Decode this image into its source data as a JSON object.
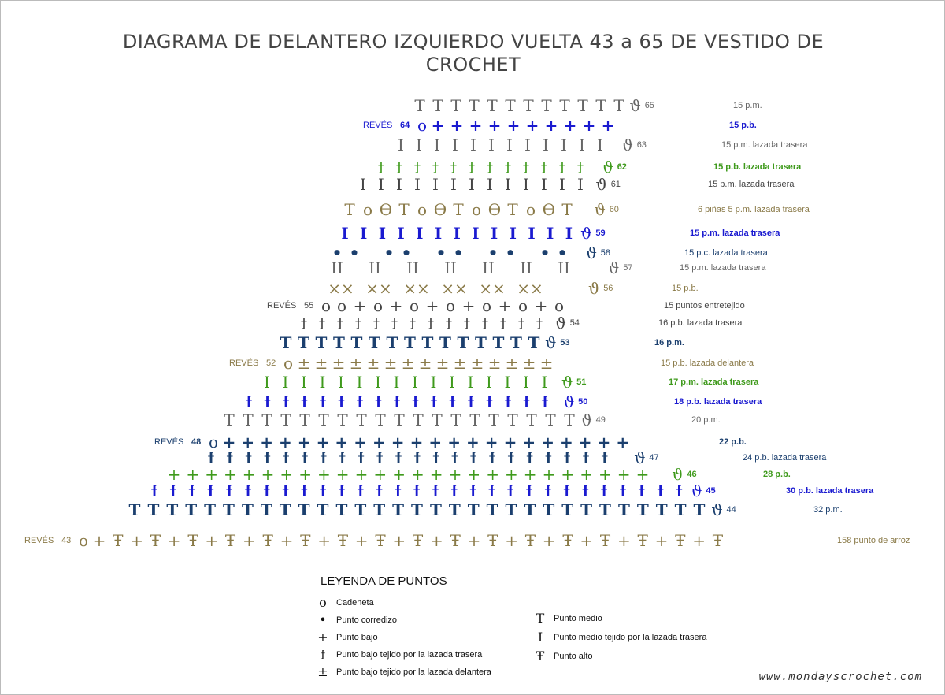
{
  "title": "DIAGRAMA DE DELANTERO IZQUIERDO VUELTA 43 a 65 DE VESTIDO DE CROCHET",
  "reves_label": "REVÉS",
  "colors": {
    "gray": "#666666",
    "darkgray": "#444444",
    "blue": "#1a1ad0",
    "green": "#3f9a1c",
    "olive": "#8a7a48",
    "navy": "#1b3f6e"
  },
  "rows": [
    {
      "number": "65",
      "stitch": "punto-medio",
      "color": "gray",
      "label": "15 p.m.",
      "bold": false,
      "reves": false
    },
    {
      "number": "64",
      "stitch": "punto-bajo",
      "color": "blue",
      "label": "15 p.b.",
      "bold": true,
      "reves": true
    },
    {
      "number": "63",
      "stitch": "punto-medio-lazada-trasera",
      "color": "gray",
      "label": "15 p.m. lazada trasera",
      "bold": false,
      "reves": false
    },
    {
      "number": "62",
      "stitch": "punto-bajo-lazada-trasera",
      "color": "green",
      "label": "15 p.b. lazada trasera",
      "bold": true,
      "reves": false
    },
    {
      "number": "61",
      "stitch": "punto-medio-lazada-trasera",
      "color": "darkgray",
      "label": "15 p.m. lazada trasera",
      "bold": false,
      "reves": false
    },
    {
      "number": "60",
      "stitch": "pina",
      "color": "olive",
      "label": "6 piñas 5 p.m. lazada trasera",
      "bold": false,
      "reves": false
    },
    {
      "number": "59",
      "stitch": "punto-medio-lazada-trasera",
      "color": "blue",
      "label": "15 p.m. lazada trasera",
      "bold": true,
      "reves": false
    },
    {
      "number": "58",
      "stitch": "punto-corredizo",
      "color": "navy",
      "label": "15 p.c. lazada trasera",
      "bold": false,
      "reves": false
    },
    {
      "number": "57",
      "stitch": "punto-medio-lazada-trasera-pares",
      "color": "gray",
      "label": "15 p.m. lazada trasera",
      "bold": false,
      "reves": false
    },
    {
      "number": "56",
      "stitch": "punto-bajo-cruzado",
      "color": "olive",
      "label": "15 p.b.",
      "bold": false,
      "reves": false
    },
    {
      "number": "55",
      "stitch": "entretejido",
      "color": "darkgray",
      "label": "15 puntos entretejido",
      "bold": false,
      "reves": true
    },
    {
      "number": "54",
      "stitch": "punto-bajo-lazada-trasera",
      "color": "darkgray",
      "label": "16 p.b. lazada trasera",
      "bold": false,
      "reves": false
    },
    {
      "number": "53",
      "stitch": "punto-medio",
      "color": "navy",
      "label": "16 p.m.",
      "bold": true,
      "reves": false
    },
    {
      "number": "52",
      "stitch": "punto-bajo-lazada-delantera",
      "color": "olive",
      "label": "15 p.b. lazada delantera",
      "bold": false,
      "reves": true
    },
    {
      "number": "51",
      "stitch": "punto-medio-lazada-trasera",
      "color": "green",
      "label": "17 p.m. lazada trasera",
      "bold": true,
      "reves": false
    },
    {
      "number": "50",
      "stitch": "punto-bajo-lazada-trasera",
      "color": "blue",
      "label": "18 p.b. lazada trasera",
      "bold": true,
      "reves": false
    },
    {
      "number": "49",
      "stitch": "punto-medio",
      "color": "gray",
      "label": "20 p.m.",
      "bold": false,
      "reves": false
    },
    {
      "number": "48",
      "stitch": "punto-bajo",
      "color": "navy",
      "label": "22 p.b.",
      "bold": true,
      "reves": true
    },
    {
      "number": "47",
      "stitch": "punto-bajo-lazada-trasera",
      "color": "navy",
      "label": "24 p.b. lazada trasera",
      "bold": false,
      "reves": false
    },
    {
      "number": "46",
      "stitch": "punto-bajo",
      "color": "green",
      "label": "28 p.b.",
      "bold": true,
      "reves": false
    },
    {
      "number": "45",
      "stitch": "punto-bajo-lazada-trasera",
      "color": "blue",
      "label": "30 p.b. lazada trasera",
      "bold": true,
      "reves": false
    },
    {
      "number": "44",
      "stitch": "punto-medio",
      "color": "navy",
      "label": "32 p.m.",
      "bold": false,
      "reves": false
    },
    {
      "number": "43",
      "stitch": "punto-de-arroz",
      "color": "olive",
      "label": "158 punto de arroz",
      "bold": false,
      "reves": true
    }
  ],
  "legend": {
    "title": "LEYENDA DE PUNTOS",
    "left": [
      {
        "icon": "cadeneta",
        "label": "Cadeneta"
      },
      {
        "icon": "punto-corredizo",
        "label": "Punto corredizo"
      },
      {
        "icon": "punto-bajo",
        "label": "Punto bajo"
      },
      {
        "icon": "punto-bajo-lazada-trasera",
        "label": "Punto bajo tejido por la lazada trasera"
      },
      {
        "icon": "punto-bajo-lazada-delantera",
        "label": "Punto bajo tejido por la lazada delantera"
      }
    ],
    "right": [
      {
        "icon": "punto-medio",
        "label": "Punto medio"
      },
      {
        "icon": "punto-medio-lazada-trasera",
        "label": "Punto medio tejido por la lazada trasera"
      },
      {
        "icon": "punto-alto",
        "label": "Punto alto"
      }
    ]
  },
  "website": "www.mondayscrochet.com"
}
